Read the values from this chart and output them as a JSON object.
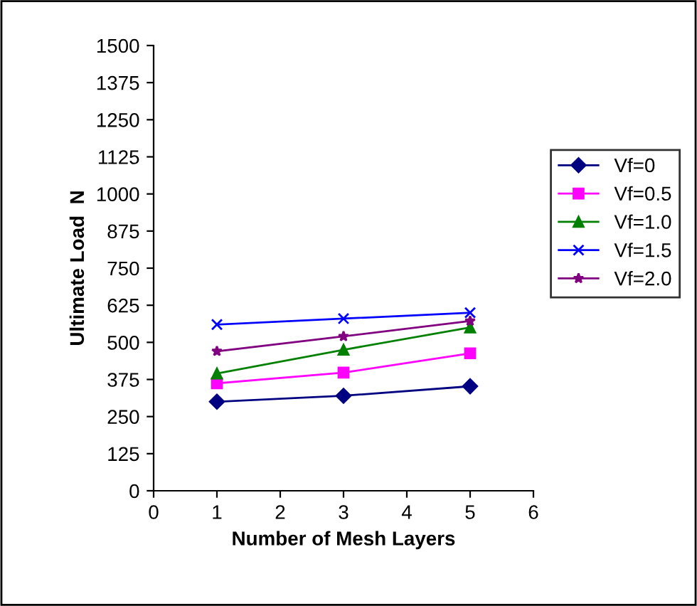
{
  "chart_data": {
    "type": "line",
    "xlabel": "Number of Mesh Layers",
    "ylabel": "Ultimate Load  N",
    "xlim": [
      0,
      6
    ],
    "xticks": [
      0,
      1,
      2,
      3,
      4,
      5,
      6
    ],
    "ylim": [
      0,
      1500
    ],
    "yticks": [
      0,
      125,
      250,
      375,
      500,
      625,
      750,
      875,
      1000,
      1125,
      1250,
      1375,
      1500
    ],
    "x": [
      1,
      3,
      5
    ],
    "grid": false,
    "legend": "right",
    "series": [
      {
        "name": "Vf=0",
        "color": "#000080",
        "marker": "diamond",
        "values": [
          300,
          320,
          352
        ]
      },
      {
        "name": "Vf=0.5",
        "color": "#ff00ff",
        "marker": "square",
        "values": [
          362,
          398,
          463
        ]
      },
      {
        "name": "Vf=1.0",
        "color": "#008000",
        "marker": "triangle",
        "values": [
          395,
          475,
          550
        ]
      },
      {
        "name": "Vf=1.5",
        "color": "#0000ff",
        "marker": "cross",
        "values": [
          560,
          580,
          600
        ]
      },
      {
        "name": "Vf=2.0",
        "color": "#800080",
        "marker": "star",
        "values": [
          470,
          520,
          572
        ]
      }
    ]
  }
}
